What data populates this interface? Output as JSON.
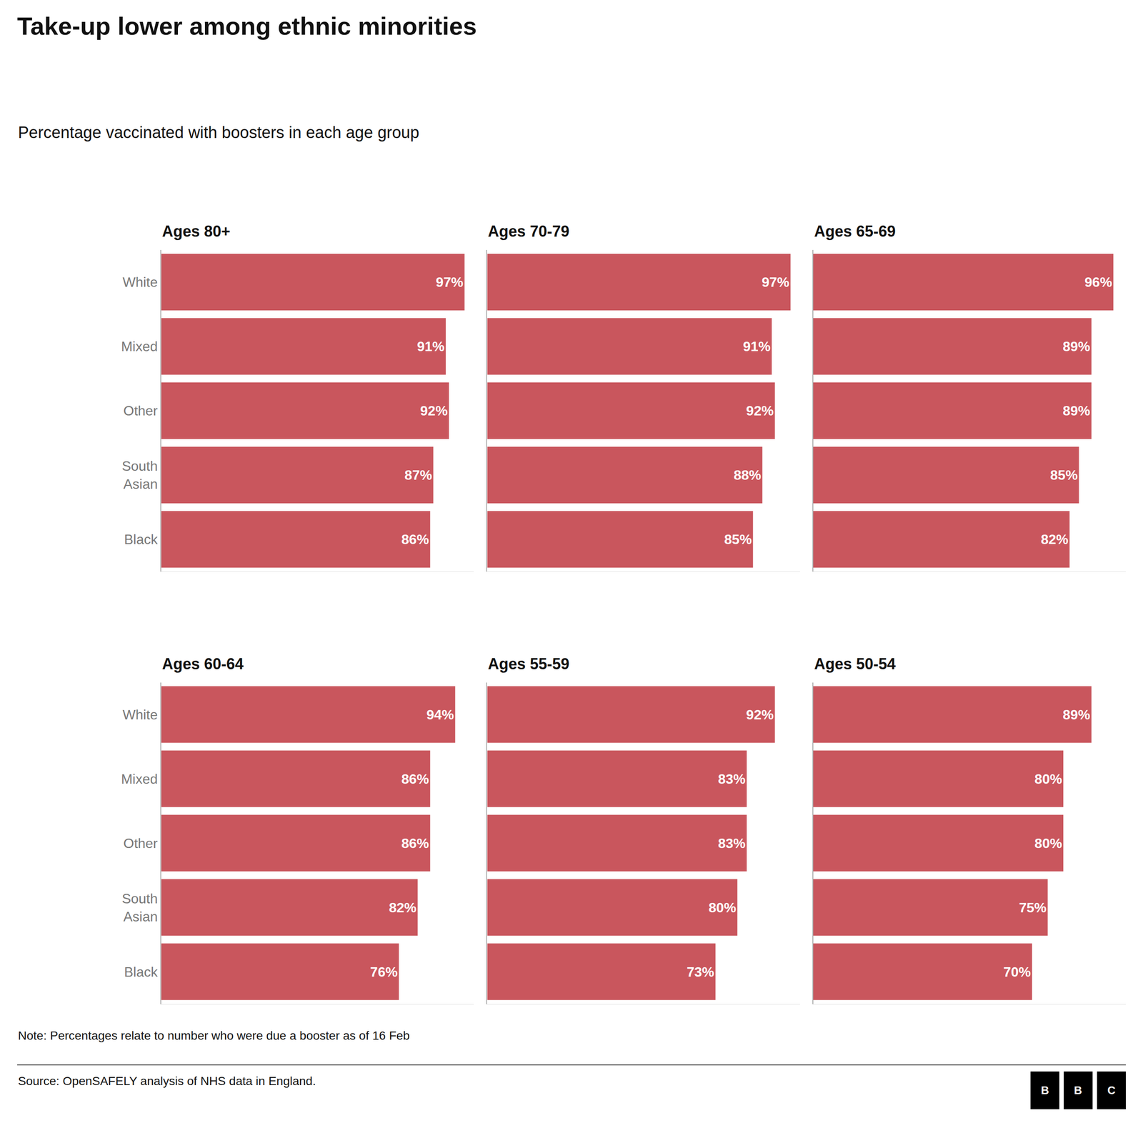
{
  "title": "Take-up lower among ethnic minorities",
  "subtitle": "Percentage vaccinated with boosters in each age group",
  "note": "Note: Percentages relate to number who were due a booster as of 16 Feb",
  "source": "Source: OpenSAFELY analysis of NHS data in England.",
  "logo": "BBC",
  "chart_data": [
    {
      "type": "bar",
      "title": "Ages 80+",
      "orientation": "horizontal",
      "categories": [
        "White",
        "Mixed",
        "Other",
        "South\nAsian",
        "Black"
      ],
      "values": [
        97,
        91,
        92,
        87,
        86
      ],
      "value_labels": [
        "97%",
        "91%",
        "92%",
        "87%",
        "86%"
      ],
      "color": "#c9565d",
      "xlim": [
        0,
        100
      ],
      "grid": false,
      "data_labels": true,
      "tick_labels": "y"
    },
    {
      "type": "bar",
      "title": "Ages 70-79",
      "orientation": "horizontal",
      "categories": [
        "White",
        "Mixed",
        "Other",
        "South\nAsian",
        "Black"
      ],
      "values": [
        97,
        91,
        92,
        88,
        85
      ],
      "value_labels": [
        "97%",
        "91%",
        "92%",
        "88%",
        "85%"
      ],
      "color": "#c9565d",
      "xlim": [
        0,
        100
      ],
      "grid": false,
      "data_labels": true,
      "tick_labels": false
    },
    {
      "type": "bar",
      "title": "Ages 65-69",
      "orientation": "horizontal",
      "categories": [
        "White",
        "Mixed",
        "Other",
        "South\nAsian",
        "Black"
      ],
      "values": [
        96,
        89,
        89,
        85,
        82
      ],
      "value_labels": [
        "96%",
        "89%",
        "89%",
        "85%",
        "82%"
      ],
      "color": "#c9565d",
      "xlim": [
        0,
        100
      ],
      "grid": false,
      "data_labels": true,
      "tick_labels": false
    },
    {
      "type": "bar",
      "title": "Ages 60-64",
      "orientation": "horizontal",
      "categories": [
        "White",
        "Mixed",
        "Other",
        "South\nAsian",
        "Black"
      ],
      "values": [
        94,
        86,
        86,
        82,
        76
      ],
      "value_labels": [
        "94%",
        "86%",
        "86%",
        "82%",
        "76%"
      ],
      "color": "#c9565d",
      "xlim": [
        0,
        100
      ],
      "grid": false,
      "data_labels": true,
      "tick_labels": "y"
    },
    {
      "type": "bar",
      "title": "Ages 55-59",
      "orientation": "horizontal",
      "categories": [
        "White",
        "Mixed",
        "Other",
        "South\nAsian",
        "Black"
      ],
      "values": [
        92,
        83,
        83,
        80,
        73
      ],
      "value_labels": [
        "92%",
        "83%",
        "83%",
        "80%",
        "73%"
      ],
      "color": "#c9565d",
      "xlim": [
        0,
        100
      ],
      "grid": false,
      "data_labels": true,
      "tick_labels": false
    },
    {
      "type": "bar",
      "title": "Ages 50-54",
      "orientation": "horizontal",
      "categories": [
        "White",
        "Mixed",
        "Other",
        "South\nAsian",
        "Black"
      ],
      "values": [
        89,
        80,
        80,
        75,
        70
      ],
      "value_labels": [
        "89%",
        "80%",
        "80%",
        "75%",
        "70%"
      ],
      "color": "#c9565d",
      "xlim": [
        0,
        100
      ],
      "grid": false,
      "data_labels": true,
      "tick_labels": false
    }
  ]
}
